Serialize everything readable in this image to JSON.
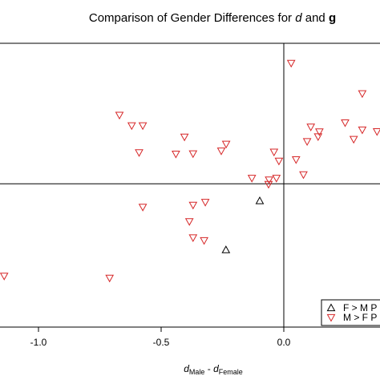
{
  "chart_data": {
    "type": "scatter",
    "title_prefix": "Comparison of Gender Differences for ",
    "title_d": "d",
    "title_and": " and ",
    "title_g": "g",
    "xlabel_main1": "d",
    "xlabel_sub1": "Male",
    "xlabel_sep": " - ",
    "xlabel_main2": "d",
    "xlabel_sub2": "Female",
    "xlim": [
      -1.15,
      0.38
    ],
    "ylim": [
      0,
      1
    ],
    "x_ticks": [
      -1.0,
      -0.5,
      0.0
    ],
    "x_tick_labels": [
      "-1.0",
      "-0.5",
      "0.0"
    ],
    "reference_x": 0.0,
    "reference_y": 0.505,
    "legend_position": "bottom-right",
    "series": [
      {
        "name": "F > M P",
        "marker": "triangle-up",
        "color": "#000000",
        "points": [
          {
            "x": -0.098,
            "y": 0.445
          },
          {
            "x": -0.236,
            "y": 0.272
          }
        ]
      },
      {
        "name": "M > F P",
        "marker": "triangle-down",
        "color": "#d62728",
        "points": [
          {
            "x": 0.03,
            "y": 0.93
          },
          {
            "x": -0.67,
            "y": 0.747
          },
          {
            "x": 0.32,
            "y": 0.823
          },
          {
            "x": 0.11,
            "y": 0.705
          },
          {
            "x": 0.145,
            "y": 0.688
          },
          {
            "x": 0.25,
            "y": 0.72
          },
          {
            "x": 0.32,
            "y": 0.695
          },
          {
            "x": 0.38,
            "y": 0.689
          },
          {
            "x": 0.285,
            "y": 0.662
          },
          {
            "x": 0.14,
            "y": 0.671
          },
          {
            "x": 0.095,
            "y": 0.654
          },
          {
            "x": -0.62,
            "y": 0.71
          },
          {
            "x": -0.575,
            "y": 0.71
          },
          {
            "x": -0.405,
            "y": 0.67
          },
          {
            "x": -0.59,
            "y": 0.615
          },
          {
            "x": -0.44,
            "y": 0.61
          },
          {
            "x": -0.37,
            "y": 0.611
          },
          {
            "x": -0.235,
            "y": 0.645
          },
          {
            "x": -0.255,
            "y": 0.621
          },
          {
            "x": -0.04,
            "y": 0.617
          },
          {
            "x": -0.02,
            "y": 0.585
          },
          {
            "x": 0.05,
            "y": 0.59
          },
          {
            "x": 0.08,
            "y": 0.537
          },
          {
            "x": -0.03,
            "y": 0.525
          },
          {
            "x": -0.06,
            "y": 0.519
          },
          {
            "x": -0.062,
            "y": 0.503
          },
          {
            "x": -0.13,
            "y": 0.525
          },
          {
            "x": -0.575,
            "y": 0.423
          },
          {
            "x": -0.37,
            "y": 0.43
          },
          {
            "x": -0.32,
            "y": 0.44
          },
          {
            "x": -0.385,
            "y": 0.372
          },
          {
            "x": -0.37,
            "y": 0.315
          },
          {
            "x": -0.325,
            "y": 0.305
          },
          {
            "x": -0.71,
            "y": 0.173
          },
          {
            "x": -1.14,
            "y": 0.18
          }
        ]
      }
    ]
  }
}
